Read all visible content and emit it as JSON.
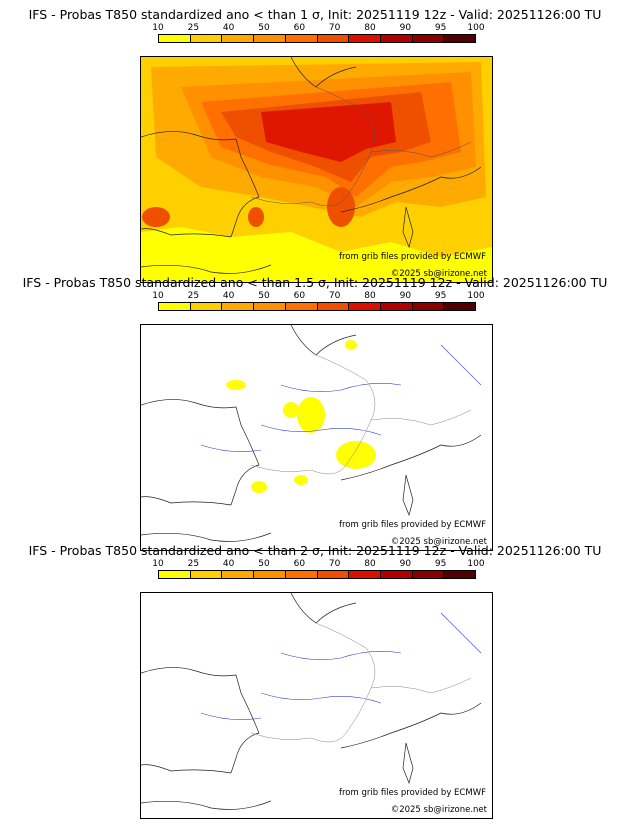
{
  "legend": {
    "ticks": [
      "10",
      "25",
      "40",
      "50",
      "60",
      "70",
      "80",
      "90",
      "95",
      "100"
    ],
    "colors": [
      "#ffff00",
      "#ffd000",
      "#ffaa00",
      "#ff9000",
      "#ff7000",
      "#ee5000",
      "#dd1000",
      "#b00000",
      "#880000",
      "#500000"
    ]
  },
  "panels": [
    {
      "title": "IFS - Probas T850  standardized ano < than 1 σ, Init: 20251119 12z - Valid: 20251126:00 TU",
      "source": "from grib files provided by ECMWF",
      "copyright": "©2025 sb@irizone.net"
    },
    {
      "title": "IFS - Probas T850  standardized ano < than 1.5 σ, Init: 20251119 12z - Valid: 20251126:00 TU",
      "source": "from grib files provided by ECMWF",
      "copyright": "©2025 sb@irizone.net"
    },
    {
      "title": "IFS - Probas T850  standardized ano < than 2 σ, Init: 20251119 12z - Valid: 20251126:00 TU",
      "source": "from grib files provided by ECMWF",
      "copyright": "©2025 sb@irizone.net"
    }
  ]
}
